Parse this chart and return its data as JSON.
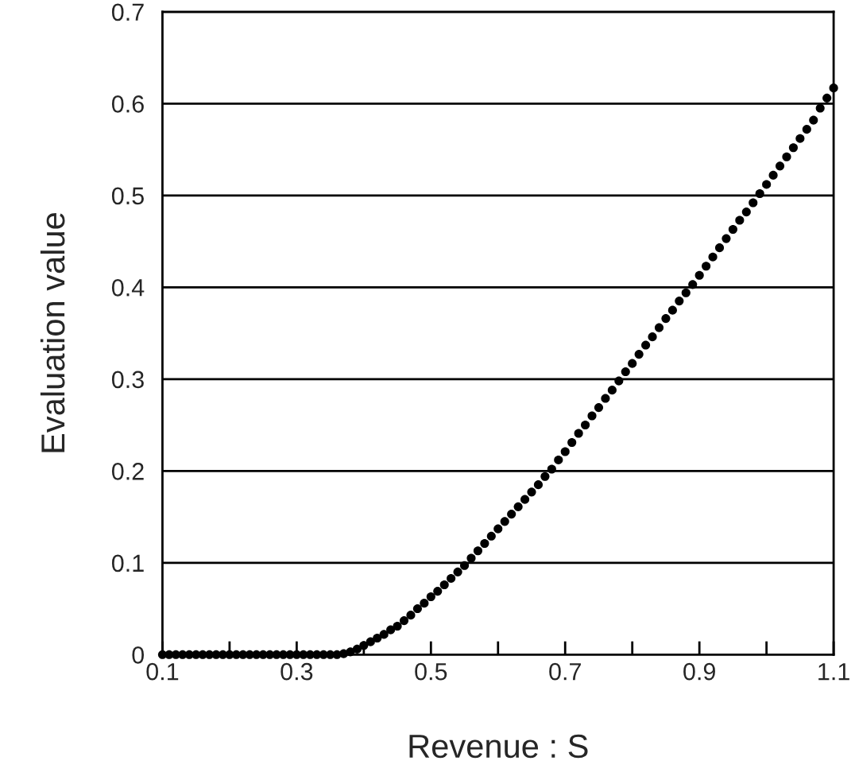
{
  "chart_data": {
    "type": "scatter",
    "xlabel": "Revenue : S",
    "ylabel": "Evaluation value",
    "x": [
      0.1,
      0.11,
      0.12,
      0.13,
      0.14,
      0.15,
      0.16,
      0.17,
      0.18,
      0.19,
      0.2,
      0.21,
      0.22,
      0.23,
      0.24,
      0.25,
      0.26,
      0.27,
      0.28,
      0.29,
      0.3,
      0.31,
      0.32,
      0.33,
      0.34,
      0.35,
      0.36,
      0.37,
      0.38,
      0.39,
      0.4,
      0.41,
      0.42,
      0.43,
      0.44,
      0.45,
      0.46,
      0.47,
      0.48,
      0.49,
      0.5,
      0.51,
      0.52,
      0.53,
      0.54,
      0.55,
      0.56,
      0.57,
      0.58,
      0.59,
      0.6,
      0.61,
      0.62,
      0.63,
      0.64,
      0.65,
      0.66,
      0.67,
      0.68,
      0.69,
      0.7,
      0.71,
      0.72,
      0.73,
      0.74,
      0.75,
      0.76,
      0.77,
      0.78,
      0.79,
      0.8,
      0.81,
      0.82,
      0.83,
      0.84,
      0.85,
      0.86,
      0.87,
      0.88,
      0.89,
      0.9,
      0.91,
      0.92,
      0.93,
      0.94,
      0.95,
      0.96,
      0.97,
      0.98,
      0.99,
      1.0,
      1.01,
      1.02,
      1.03,
      1.04,
      1.05,
      1.06,
      1.07,
      1.08,
      1.09,
      1.1
    ],
    "series": [
      {
        "color": "#000000",
        "values": [
          0,
          0,
          0,
          0,
          0,
          0,
          0,
          0,
          0,
          0,
          0,
          0,
          0,
          0,
          0,
          0,
          0,
          0,
          0,
          0,
          0,
          0,
          0,
          0,
          0,
          0,
          0,
          0.001,
          0.003,
          0.006,
          0.01,
          0.014,
          0.018,
          0.022,
          0.027,
          0.031,
          0.037,
          0.043,
          0.05,
          0.056,
          0.063,
          0.069,
          0.076,
          0.083,
          0.09,
          0.097,
          0.105,
          0.113,
          0.121,
          0.129,
          0.137,
          0.145,
          0.153,
          0.161,
          0.169,
          0.177,
          0.185,
          0.194,
          0.202,
          0.212,
          0.221,
          0.231,
          0.241,
          0.25,
          0.26,
          0.269,
          0.279,
          0.288,
          0.298,
          0.308,
          0.317,
          0.327,
          0.337,
          0.346,
          0.356,
          0.366,
          0.375,
          0.385,
          0.394,
          0.403,
          0.413,
          0.423,
          0.433,
          0.443,
          0.453,
          0.463,
          0.473,
          0.482,
          0.492,
          0.502,
          0.512,
          0.522,
          0.532,
          0.542,
          0.552,
          0.562,
          0.572,
          0.582,
          0.595,
          0.606,
          0.617
        ]
      }
    ],
    "xlim": [
      0.1,
      1.1
    ],
    "xticks": [
      {
        "value": 0.1,
        "label": "0.1"
      },
      {
        "value": 0.2,
        "label": null
      },
      {
        "value": 0.3,
        "label": "0.3"
      },
      {
        "value": 0.4,
        "label": null
      },
      {
        "value": 0.5,
        "label": "0.5"
      },
      {
        "value": 0.6,
        "label": null
      },
      {
        "value": 0.7,
        "label": "0.7"
      },
      {
        "value": 0.8,
        "label": null
      },
      {
        "value": 0.9,
        "label": "0.9"
      },
      {
        "value": 1.0,
        "label": null
      },
      {
        "value": 1.1,
        "label": "1.1"
      }
    ],
    "ylim": [
      0,
      0.7
    ],
    "yticks": [
      0,
      0.1,
      0.2,
      0.3,
      0.4,
      0.5,
      0.6,
      0.7
    ],
    "grid": "y",
    "legend": false,
    "marker": "circle"
  }
}
